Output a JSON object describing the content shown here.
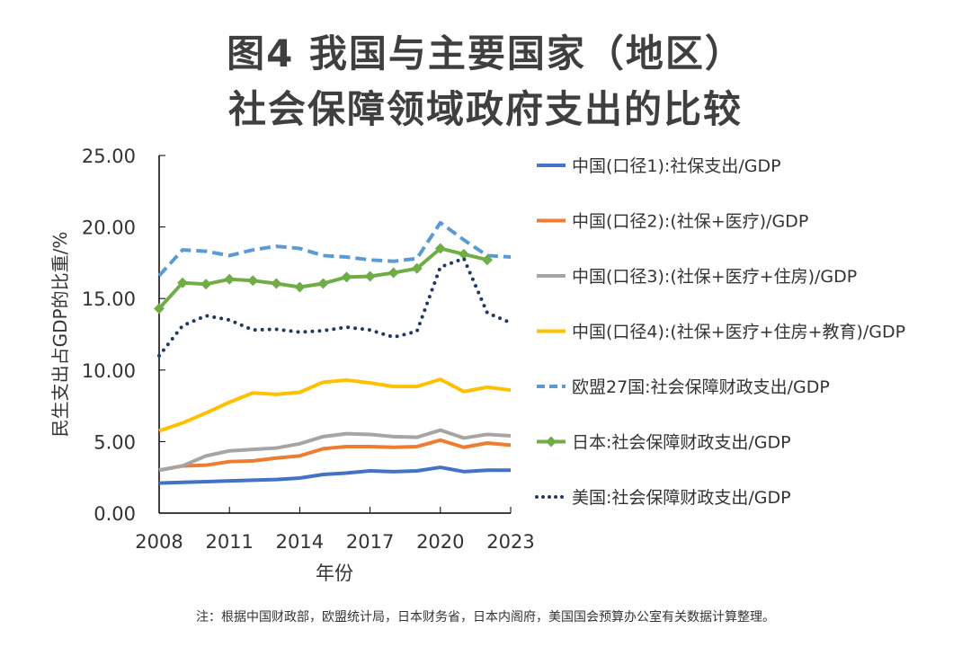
{
  "chart_data": {
    "type": "line",
    "title": "图4 我国与主要国家（地区）",
    "subtitle": "社会保障领域政府支出的比较",
    "xlabel": "年份",
    "ylabel": "民生支出占GDP的比重/%",
    "ylim": [
      0,
      25
    ],
    "xlim": [
      2008,
      2023
    ],
    "yticks": [
      "0.00",
      "5.00",
      "10.00",
      "15.00",
      "20.00",
      "25.00"
    ],
    "xticks": [
      "2008",
      "2011",
      "2014",
      "2017",
      "2020",
      "2023"
    ],
    "grid": false,
    "legend_position": "right",
    "x": [
      2008,
      2009,
      2010,
      2011,
      2012,
      2013,
      2014,
      2015,
      2016,
      2017,
      2018,
      2019,
      2020,
      2021,
      2022,
      2023
    ],
    "series": [
      {
        "name": "中国(口径1):社保支出/GDP",
        "color": "#4472c4",
        "style": "solid",
        "values": [
          2.1,
          2.15,
          2.2,
          2.25,
          2.3,
          2.35,
          2.45,
          2.7,
          2.8,
          2.95,
          2.9,
          2.95,
          3.2,
          2.9,
          3.0,
          3.0
        ]
      },
      {
        "name": "中国(口径2):(社保+医疗)/GDP",
        "color": "#ed7d31",
        "style": "solid",
        "values": [
          3.0,
          3.3,
          3.35,
          3.6,
          3.65,
          3.85,
          4.0,
          4.5,
          4.65,
          4.65,
          4.6,
          4.65,
          5.1,
          4.6,
          4.9,
          4.75
        ]
      },
      {
        "name": "中国(口径3):(社保+医疗+住房)/GDP",
        "color": "#a5a5a5",
        "style": "solid",
        "values": [
          3.0,
          3.3,
          4.0,
          4.35,
          4.45,
          4.55,
          4.85,
          5.35,
          5.55,
          5.5,
          5.35,
          5.3,
          5.8,
          5.25,
          5.5,
          5.4
        ]
      },
      {
        "name": "中国(口径4):(社保+医疗+住房+教育)/GDP",
        "color": "#ffc000",
        "style": "solid",
        "values": [
          5.75,
          6.3,
          7.0,
          7.75,
          8.4,
          8.3,
          8.45,
          9.15,
          9.3,
          9.1,
          8.85,
          8.85,
          9.35,
          8.5,
          8.8,
          8.6
        ]
      },
      {
        "name": "欧盟27国:社会保障财政支出/GDP",
        "color": "#5b9bd5",
        "style": "dashed",
        "values": [
          16.6,
          18.4,
          18.3,
          18.0,
          18.4,
          18.65,
          18.5,
          18.0,
          17.9,
          17.7,
          17.6,
          17.8,
          20.3,
          19.1,
          18.0,
          17.9
        ]
      },
      {
        "name": "日本:社会保障财政支出/GDP",
        "color": "#70ad47",
        "style": "diamond",
        "values": [
          14.3,
          16.1,
          16.0,
          16.35,
          16.25,
          16.05,
          15.8,
          16.05,
          16.5,
          16.55,
          16.8,
          17.1,
          18.5,
          18.1,
          17.7,
          null
        ]
      },
      {
        "name": "美国:社会保障财政支出/GDP",
        "color": "#203864",
        "style": "dotted",
        "values": [
          11.0,
          13.1,
          13.8,
          13.5,
          12.8,
          12.85,
          12.65,
          12.75,
          13.0,
          12.8,
          12.3,
          12.7,
          17.2,
          17.8,
          14.0,
          13.3
        ]
      }
    ],
    "note": "注：根据中国财政部，欧盟统计局，日本财务省，日本内阁府，美国国会预算办公室有关数据计算整理。"
  }
}
